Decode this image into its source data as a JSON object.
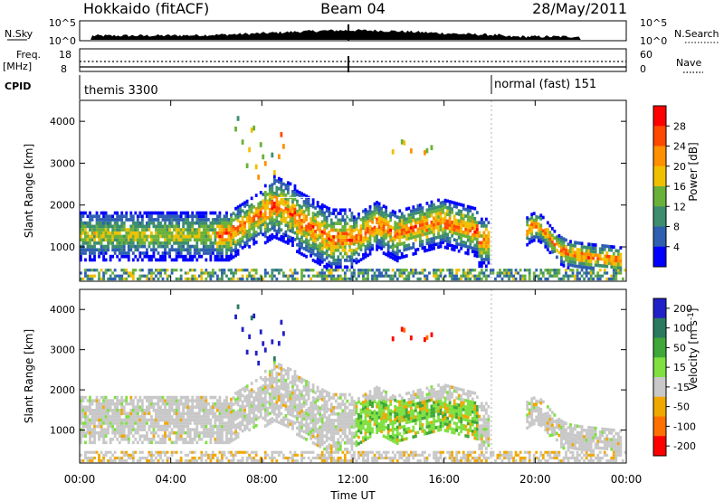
{
  "header": {
    "title": "Hokkaido (fitACF)",
    "beam": "Beam 04",
    "date": "28/May/2011"
  },
  "top_panels": {
    "nsky": {
      "left_label": "N.Sky",
      "right_label": "N.Search",
      "left_ticks": [
        "10^5",
        "10^0"
      ],
      "right_ticks": [
        "10^5",
        "10^0"
      ]
    },
    "freq": {
      "left_label_1": "Freq.",
      "left_label_2": "[MHz]",
      "left_ticks": [
        "18",
        "8"
      ],
      "right_label": "Nave",
      "right_ticks": [
        "60",
        "0"
      ]
    },
    "cpid": {
      "label": "CPID",
      "segments": [
        {
          "text": "themis 3300",
          "start_hour": 0
        },
        {
          "text": "normal (fast) 151",
          "start_hour": 18
        }
      ]
    }
  },
  "chart_data": [
    {
      "type": "heatmap",
      "name": "power",
      "ylabel": "Slant Range [km]",
      "ylim": [
        180,
        4500
      ],
      "yticks": [
        "1000",
        "2000",
        "3000",
        "4000"
      ],
      "colorbar_label": "Power [dB]",
      "colorbar_ticks": [
        "4",
        "8",
        "12",
        "16",
        "20",
        "24",
        "28"
      ],
      "colorbar_range": [
        0,
        32
      ],
      "colors": [
        "#0000ff",
        "#2e5fb0",
        "#3d8e6e",
        "#6ab13a",
        "#f0c000",
        "#ff9000",
        "#ff4800",
        "#ff0000"
      ]
    },
    {
      "type": "heatmap",
      "name": "velocity",
      "ylabel": "Slant Range [km]",
      "ylim": [
        180,
        4500
      ],
      "yticks": [
        "1000",
        "2000",
        "3000",
        "4000"
      ],
      "colorbar_label": "Velocity [m s^-1]",
      "colorbar_ticks": [
        "200",
        "100",
        "50",
        "15",
        "-15",
        "-50",
        "-100",
        "-200"
      ],
      "colors": [
        "#2020c8",
        "#2a7a60",
        "#3fa838",
        "#7fe040",
        "#c8c8c8",
        "#f0a800",
        "#ff7000",
        "#ff0000"
      ]
    }
  ],
  "time_axis": {
    "xlabel": "Time UT",
    "ticks": [
      "00:00",
      "04:00",
      "08:00",
      "12:00",
      "16:00",
      "20:00",
      "00:00"
    ],
    "range_hours": [
      0,
      24
    ]
  }
}
